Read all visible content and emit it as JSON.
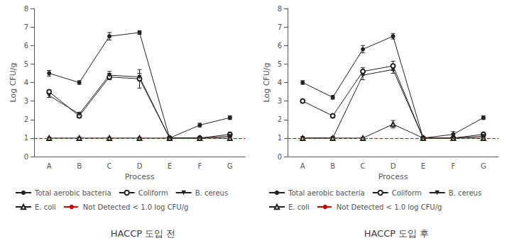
{
  "chart_data": [
    {
      "type": "line",
      "title": "HACCP 도입 전",
      "xlabel": "Process",
      "ylabel": "Log CFU/g",
      "categories": [
        "A",
        "B",
        "C",
        "D",
        "E",
        "F",
        "G"
      ],
      "ylim": [
        0,
        8
      ],
      "yticks": [
        0,
        1,
        2,
        3,
        4,
        5,
        6,
        7,
        8
      ],
      "grid": false,
      "legend": "bottom",
      "series": [
        {
          "name": "Total aerobic bacteria",
          "color": "#222222",
          "marker": "filled_circle",
          "values": [
            4.5,
            4.0,
            6.5,
            6.7,
            1.0,
            1.7,
            2.1
          ],
          "errors": [
            0.15,
            0.1,
            0.2,
            0.1,
            0.05,
            0.1,
            0.1
          ]
        },
        {
          "name": "Coliform",
          "color": "#222222",
          "marker": "open_circle",
          "values": [
            3.5,
            2.2,
            4.3,
            4.2,
            1.0,
            1.0,
            1.2
          ],
          "errors": [
            0.1,
            0.1,
            0.15,
            0.5,
            0.05,
            0.05,
            0.1
          ]
        },
        {
          "name": "B. cereus",
          "color": "#222222",
          "marker": "filled_triangle_down",
          "values": [
            3.3,
            2.3,
            4.4,
            4.3,
            1.0,
            1.0,
            1.1
          ],
          "errors": [
            0.1,
            0.1,
            0.2,
            0.2,
            0.05,
            0.05,
            0.05
          ]
        },
        {
          "name": "E. coli",
          "color": "#222222",
          "marker": "open_triangle_up",
          "values": [
            1.0,
            1.0,
            1.0,
            1.0,
            1.0,
            1.0,
            1.0
          ],
          "errors": [
            0.05,
            0.05,
            0.05,
            0.05,
            0.05,
            0.05,
            0.05
          ]
        },
        {
          "name": "Not Detected < 1.0 log CFU/g",
          "type": "hline",
          "color": "#cc0000",
          "line_style": "dashed",
          "y": 1.0
        }
      ]
    },
    {
      "type": "line",
      "title": "HACCP 도입 후",
      "xlabel": "Process",
      "ylabel": "Log CFU/g",
      "categories": [
        "A",
        "B",
        "C",
        "D",
        "E",
        "F",
        "G"
      ],
      "ylim": [
        0,
        8
      ],
      "yticks": [
        0,
        1,
        2,
        3,
        4,
        5,
        6,
        7,
        8
      ],
      "grid": false,
      "legend": "bottom",
      "series": [
        {
          "name": "Total aerobic bacteria",
          "color": "#222222",
          "marker": "filled_circle",
          "values": [
            4.0,
            3.2,
            5.8,
            6.5,
            1.0,
            1.2,
            2.1
          ],
          "errors": [
            0.1,
            0.1,
            0.2,
            0.15,
            0.05,
            0.15,
            0.1
          ]
        },
        {
          "name": "Coliform",
          "color": "#222222",
          "marker": "open_circle",
          "values": [
            3.0,
            2.2,
            4.6,
            4.9,
            1.0,
            1.0,
            1.2
          ],
          "errors": [
            0.1,
            0.1,
            0.2,
            0.25,
            0.05,
            0.05,
            0.1
          ]
        },
        {
          "name": "B. cereus",
          "color": "#222222",
          "marker": "filled_triangle_down",
          "values": [
            1.0,
            1.0,
            4.4,
            4.7,
            1.0,
            1.0,
            1.1
          ],
          "errors": [
            0.05,
            0.05,
            0.25,
            0.2,
            0.05,
            0.05,
            0.05
          ]
        },
        {
          "name": "E. coli",
          "color": "#222222",
          "marker": "open_triangle_up",
          "values": [
            1.0,
            1.0,
            1.0,
            1.75,
            1.0,
            1.0,
            1.0
          ],
          "errors": [
            0.05,
            0.05,
            0.05,
            0.2,
            0.05,
            0.05,
            0.05
          ]
        },
        {
          "name": "Not Detected < 1.0 log CFU/g",
          "type": "hline",
          "color": "#cc0000",
          "line_style": "dashed",
          "y": 1.0
        }
      ]
    }
  ]
}
